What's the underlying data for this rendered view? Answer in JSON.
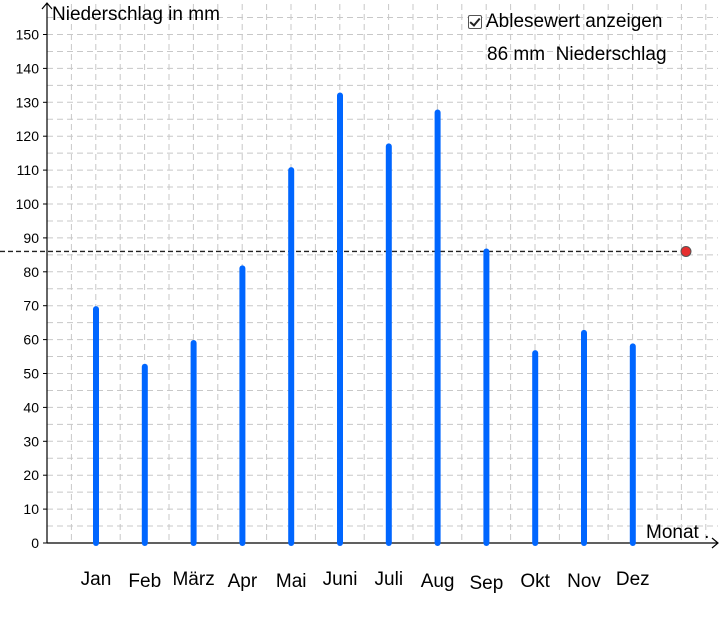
{
  "chart_data": {
    "type": "bar",
    "ylabel": "Niederschlag in mm",
    "xlabel": "Monat .",
    "ylim": [
      0,
      150
    ],
    "yticks": [
      0,
      10,
      20,
      30,
      40,
      50,
      60,
      70,
      80,
      90,
      100,
      110,
      120,
      130,
      140,
      150
    ],
    "grid": true,
    "categories": [
      "Jan",
      "Feb",
      "März",
      "Apr",
      "Mai",
      "Juni",
      "Juli",
      "Aug",
      "Sep",
      "Okt",
      "Nov",
      "Dez"
    ],
    "values": [
      69,
      52,
      59,
      81,
      110,
      132,
      117,
      127,
      86,
      56,
      62,
      58
    ],
    "reference_line": 86,
    "bar_color": "#0066ff",
    "point_color": "#e62e2e"
  },
  "controls": {
    "show_readout_label": "Ablesewert anzeigen",
    "show_readout_checked": true,
    "readout_text": "86 mm  Niederschlag"
  }
}
